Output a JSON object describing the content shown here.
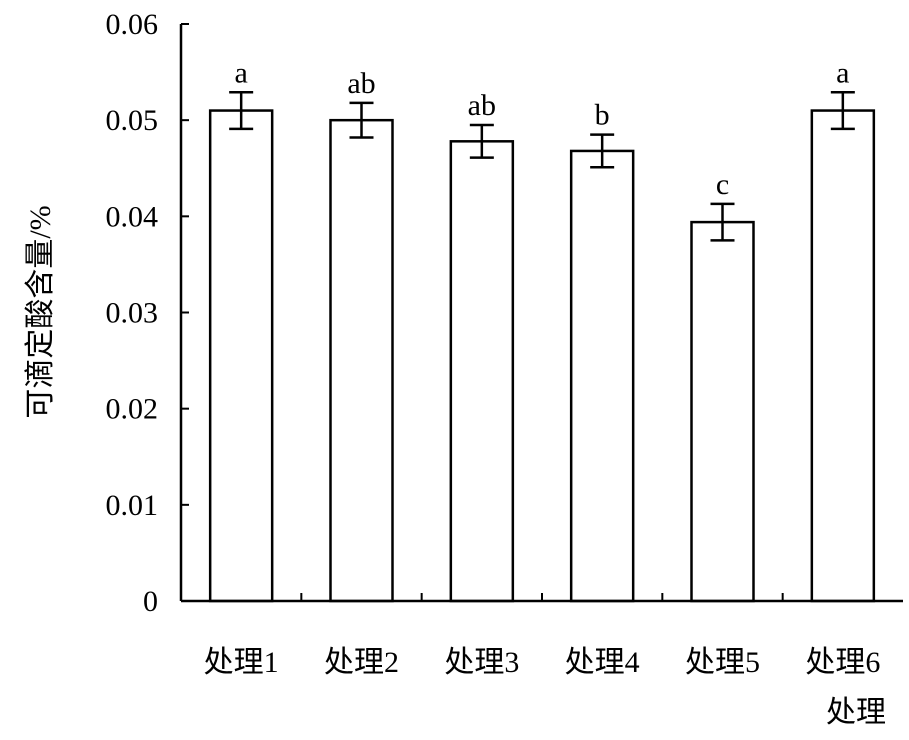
{
  "chart_data": {
    "type": "bar",
    "categories": [
      "处理1",
      "处理2",
      "处理3",
      "处理4",
      "处理5",
      "处理6"
    ],
    "values": [
      0.051,
      0.05,
      0.0478,
      0.0468,
      0.0394,
      0.051
    ],
    "errors": [
      0.0019,
      0.0018,
      0.0017,
      0.0017,
      0.0019,
      0.0019
    ],
    "significance_letters": [
      "a",
      "ab",
      "ab",
      "b",
      "c",
      "a"
    ],
    "title": "",
    "xlabel": "处理",
    "ylabel": "可滴定酸含量/%",
    "ylim": [
      0,
      0.06
    ],
    "yticks": [
      "0",
      "0.01",
      "0.02",
      "0.03",
      "0.04",
      "0.05",
      "0.06"
    ],
    "ytick_values": [
      0,
      0.01,
      0.02,
      0.03,
      0.04,
      0.05,
      0.06
    ],
    "grid": false,
    "bar_fill": "#ffffff",
    "bar_stroke": "#000000"
  }
}
